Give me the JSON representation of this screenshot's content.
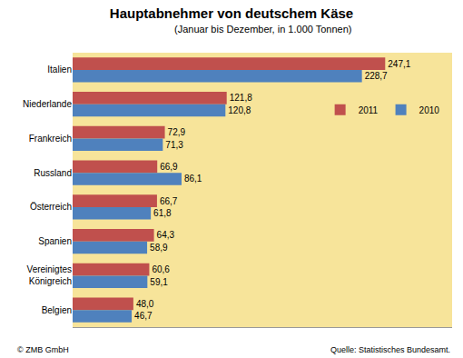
{
  "chart_data": {
    "type": "bar",
    "orientation": "horizontal",
    "title": "Hauptabnehmer von deutschem Käse",
    "subtitle": "(Januar bis Dezember, in 1.000 Tonnen)",
    "categories": [
      "Italien",
      "Niederlande",
      "Frankreich",
      "Russland",
      "Österreich",
      "Spanien",
      "Vereinigtes Königreich",
      "Belgien"
    ],
    "series": [
      {
        "name": "2011",
        "color": "#C0504D",
        "values": [
          247.1,
          121.8,
          72.9,
          66.9,
          66.7,
          64.3,
          60.6,
          48.0
        ],
        "value_labels": [
          "247,1",
          "121,8",
          "72,9",
          "66,9",
          "66,7",
          "64,3",
          "60,6",
          "48,0"
        ]
      },
      {
        "name": "2010",
        "color": "#4F81BD",
        "values": [
          228.7,
          120.8,
          71.3,
          86.1,
          61.8,
          58.9,
          59.1,
          46.7
        ],
        "value_labels": [
          "228,7",
          "120,8",
          "71,3",
          "86,1",
          "61,8",
          "58,9",
          "59,1",
          "46,7"
        ]
      }
    ],
    "xlim": [
      0,
      300
    ],
    "xticks": [],
    "tick_labels": "y",
    "grid": false,
    "data_labels": true,
    "legend": "upper right",
    "annotations": [
      {
        "text": "© ZMB GmbH"
      },
      {
        "text": "Quelle: Statistisches Bundesamt."
      }
    ]
  }
}
